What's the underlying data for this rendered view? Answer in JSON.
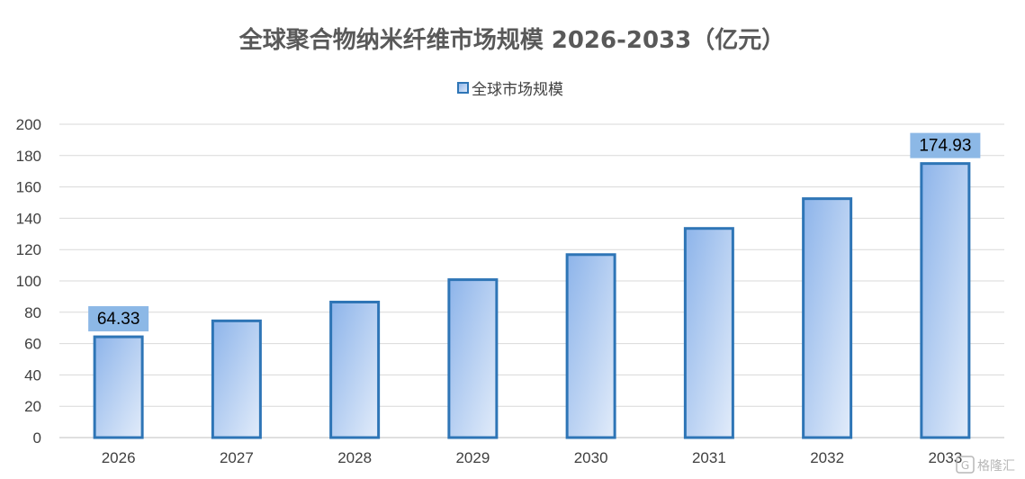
{
  "chart_data": {
    "type": "bar",
    "title": "全球聚合物纳米纤维市场规模 2026-2033（亿元）",
    "xlabel": "",
    "ylabel": "",
    "categories": [
      "2026",
      "2027",
      "2028",
      "2029",
      "2030",
      "2031",
      "2032",
      "2033"
    ],
    "series": [
      {
        "name": "全球市场规模",
        "values": [
          64.33,
          74.5,
          86.5,
          100.8,
          116.8,
          133.5,
          152.5,
          174.93
        ]
      }
    ],
    "ylim": [
      0,
      200
    ],
    "yticks": [
      0,
      20,
      40,
      60,
      80,
      100,
      120,
      140,
      160,
      180,
      200
    ],
    "data_labels": [
      {
        "index": 0,
        "text": "64.33"
      },
      {
        "index": 7,
        "text": "174.93"
      }
    ],
    "grid": true,
    "legend_position": "top-center",
    "colors": {
      "bar_fill_start": "#8db4ea",
      "bar_fill_end": "#e2ecfa",
      "bar_stroke": "#2e75b6",
      "label_box": "#8cb8e6",
      "gridline": "#d9d9d9",
      "axis": "#bfbfbf"
    }
  },
  "watermark": {
    "text": "格隆汇",
    "icon": "logo-icon"
  }
}
